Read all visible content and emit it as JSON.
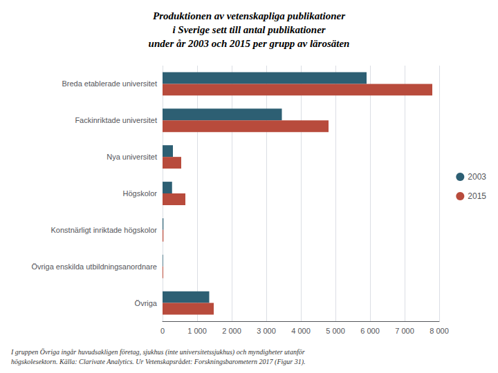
{
  "chart_data": {
    "type": "bar",
    "orientation": "horizontal",
    "title": "Produktionen av vetenskapliga publikationer\ni Sverige sett till antal publikationer\nunder år 2003 och 2015 per grupp av lärosäten",
    "annotations": [
      "I gruppen Övriga ingår huvudsakligen företag, sjukhus (inte universitetssjukhus) och myndigheter utanför\nhögskolesektorn. Källa: Clarivate Analytics. Ur Vetenskapsrådet: Forskningsbarometern 2017 (Figur 31)."
    ],
    "categories": [
      "Breda etablerade universitet",
      "Fackinriktade universitet",
      "Nya universitet",
      "Högskolor",
      "Konstnärligt inriktade högskolor",
      "Övriga enskilda utbildningsanordnare",
      "Övriga"
    ],
    "series": [
      {
        "name": "2003",
        "color": "#2d5f73",
        "values": [
          5900,
          3450,
          300,
          275,
          25,
          15,
          1350
        ]
      },
      {
        "name": "2015",
        "color": "#b84b3c",
        "values": [
          7800,
          4800,
          540,
          660,
          25,
          20,
          1480
        ]
      }
    ],
    "xlim": [
      0,
      8000
    ],
    "xticks": [
      0,
      {
        "value": 1000,
        "label": "1 000"
      },
      {
        "value": 2000,
        "label": "2 000"
      },
      {
        "value": 3000,
        "label": "3 000"
      },
      {
        "value": 4000,
        "label": "4 000"
      },
      {
        "value": 5000,
        "label": "5 000"
      },
      {
        "value": 6000,
        "label": "6 000"
      },
      {
        "value": 7000,
        "label": "7 000"
      },
      {
        "value": 8000,
        "label": "8 000"
      }
    ],
    "grid": true,
    "legend": "right"
  }
}
